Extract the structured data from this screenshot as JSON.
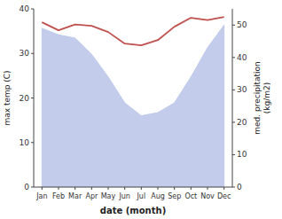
{
  "chart_data": {
    "type": "line",
    "categories": [
      "Jan",
      "Feb",
      "Mar",
      "Apr",
      "May",
      "Jun",
      "Jul",
      "Aug",
      "Sep",
      "Oct",
      "Nov",
      "Dec"
    ],
    "xlabel": "date (month)",
    "ylabel": "max temp (C)",
    "y2label": "med. precipitation\n(kg/m2)",
    "series": [
      {
        "type": "area",
        "axis": "y2",
        "color": "#b8c4e8",
        "values": [
          49,
          47,
          46,
          41,
          34,
          26,
          22,
          23,
          26,
          34,
          43,
          50
        ]
      },
      {
        "type": "line",
        "color": "#c0504d",
        "values": [
          37.0,
          35.2,
          36.5,
          36.2,
          34.8,
          32.2,
          31.8,
          33.0,
          36.0,
          38.0,
          37.5,
          38.2
        ]
      }
    ],
    "ylim": [
      0,
      40
    ],
    "yticks": [
      0,
      10,
      20,
      30,
      40
    ],
    "y2lim": [
      0,
      55
    ],
    "y2ticks": [
      0,
      10,
      20,
      30,
      40,
      50
    ]
  }
}
